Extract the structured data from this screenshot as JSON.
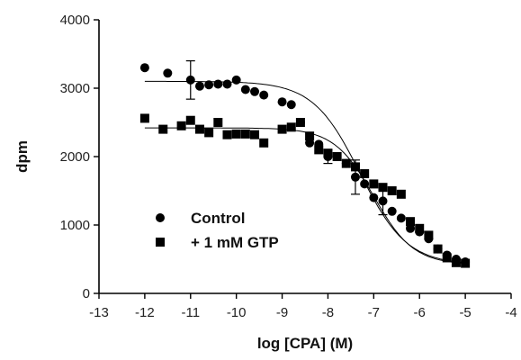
{
  "chart_data": {
    "type": "scatter",
    "title": "",
    "xlabel": "log [CPA]  (M)",
    "ylabel": "dpm",
    "xlim": [
      -13,
      -4
    ],
    "ylim": [
      0,
      4000
    ],
    "x_ticks": [
      "-13",
      "-12",
      "-11",
      "-10",
      "-9",
      "-8",
      "-7",
      "-6",
      "-5",
      "-4"
    ],
    "y_ticks": [
      "0",
      "1000",
      "2000",
      "3000",
      "4000"
    ],
    "grid": false,
    "legend_position": "lower-left",
    "series": [
      {
        "name": "Control",
        "marker": "circle",
        "color": "#000000",
        "points": [
          {
            "x": -12.0,
            "y": 3300
          },
          {
            "x": -11.5,
            "y": 3220
          },
          {
            "x": -11.0,
            "y": 3120,
            "err": 280
          },
          {
            "x": -10.8,
            "y": 3030
          },
          {
            "x": -10.6,
            "y": 3050
          },
          {
            "x": -10.4,
            "y": 3060
          },
          {
            "x": -10.2,
            "y": 3060
          },
          {
            "x": -10.0,
            "y": 3120
          },
          {
            "x": -9.8,
            "y": 2980
          },
          {
            "x": -9.6,
            "y": 2950
          },
          {
            "x": -9.4,
            "y": 2900
          },
          {
            "x": -9.0,
            "y": 2800
          },
          {
            "x": -8.8,
            "y": 2760
          },
          {
            "x": -8.6,
            "y": 2500
          },
          {
            "x": -8.4,
            "y": 2200
          },
          {
            "x": -8.2,
            "y": 2180
          },
          {
            "x": -8.0,
            "y": 2000,
            "err": 100
          },
          {
            "x": -7.6,
            "y": 1900
          },
          {
            "x": -7.4,
            "y": 1700,
            "err": 250
          },
          {
            "x": -7.2,
            "y": 1600
          },
          {
            "x": -7.0,
            "y": 1400
          },
          {
            "x": -6.8,
            "y": 1350,
            "err": 200
          },
          {
            "x": -6.6,
            "y": 1200
          },
          {
            "x": -6.4,
            "y": 1100
          },
          {
            "x": -6.2,
            "y": 950
          },
          {
            "x": -6.0,
            "y": 900
          },
          {
            "x": -5.8,
            "y": 800
          },
          {
            "x": -5.6,
            "y": 650
          },
          {
            "x": -5.4,
            "y": 560
          },
          {
            "x": -5.2,
            "y": 500
          },
          {
            "x": -5.0,
            "y": 460
          }
        ]
      },
      {
        "name": "+ 1 mM GTP",
        "marker": "square",
        "color": "#000000",
        "points": [
          {
            "x": -12.0,
            "y": 2560
          },
          {
            "x": -11.6,
            "y": 2400
          },
          {
            "x": -11.2,
            "y": 2450
          },
          {
            "x": -11.0,
            "y": 2530
          },
          {
            "x": -10.8,
            "y": 2400
          },
          {
            "x": -10.6,
            "y": 2350
          },
          {
            "x": -10.4,
            "y": 2500
          },
          {
            "x": -10.2,
            "y": 2320
          },
          {
            "x": -10.0,
            "y": 2330
          },
          {
            "x": -9.8,
            "y": 2330
          },
          {
            "x": -9.6,
            "y": 2320
          },
          {
            "x": -9.4,
            "y": 2200
          },
          {
            "x": -9.0,
            "y": 2400
          },
          {
            "x": -8.8,
            "y": 2430
          },
          {
            "x": -8.6,
            "y": 2500
          },
          {
            "x": -8.4,
            "y": 2300
          },
          {
            "x": -8.2,
            "y": 2100
          },
          {
            "x": -8.0,
            "y": 2050
          },
          {
            "x": -7.8,
            "y": 2000
          },
          {
            "x": -7.6,
            "y": 1900
          },
          {
            "x": -7.4,
            "y": 1850
          },
          {
            "x": -7.2,
            "y": 1750
          },
          {
            "x": -7.0,
            "y": 1600
          },
          {
            "x": -6.8,
            "y": 1550
          },
          {
            "x": -6.6,
            "y": 1500
          },
          {
            "x": -6.4,
            "y": 1450
          },
          {
            "x": -6.2,
            "y": 1050
          },
          {
            "x": -6.0,
            "y": 950
          },
          {
            "x": -5.8,
            "y": 850
          },
          {
            "x": -5.6,
            "y": 650
          },
          {
            "x": -5.4,
            "y": 520
          },
          {
            "x": -5.2,
            "y": 450
          },
          {
            "x": -5.0,
            "y": 440
          }
        ]
      }
    ],
    "fit_curves": [
      {
        "series": "Control",
        "top": 3100,
        "bottom": 420,
        "log_ec50": -7.3,
        "hill": 0.85
      },
      {
        "series": "+ 1 mM GTP",
        "top": 2420,
        "bottom": 420,
        "log_ec50": -7.0,
        "hill": 1.0
      }
    ]
  }
}
